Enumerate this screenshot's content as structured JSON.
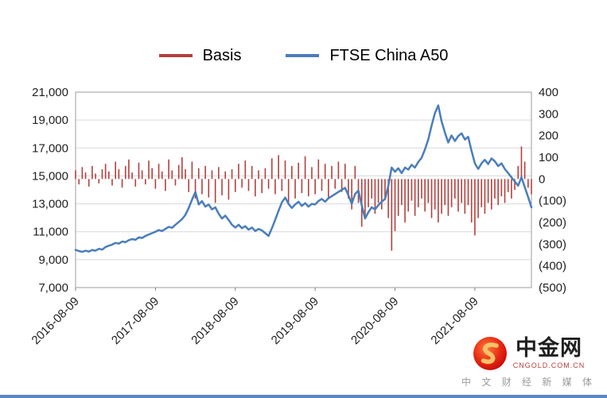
{
  "watermark": {
    "name": "中金网",
    "domain": "CNGOLD.COM.CN",
    "tagline": "中 文 财 经 新 媒 体",
    "logo_red": "#d71718",
    "logo_gold": "#f6c269"
  },
  "chart_data": {
    "type": "line",
    "title": "",
    "grid": true,
    "legend_position": "top",
    "left_axis": {
      "min": 7000,
      "max": 21000,
      "step": 2000,
      "labels": [
        "21,000",
        "19,000",
        "17,000",
        "15,000",
        "13,000",
        "11,000",
        "9,000",
        "7,000"
      ]
    },
    "right_axis": {
      "min": -500,
      "max": 400,
      "step": 100,
      "labels": [
        "400",
        "300",
        "200",
        "100",
        "0",
        "(100)",
        "(200)",
        "(300)",
        "(400)",
        "(500)"
      ]
    },
    "x_ticks": {
      "labels": [
        "2016-08-09",
        "2017-08-09",
        "2018-08-09",
        "2019-08-09",
        "2020-08-09",
        "2021-08-09"
      ],
      "indices": [
        0,
        24,
        48,
        72,
        96,
        120
      ]
    },
    "series": [
      {
        "name": "Basis",
        "type": "bar",
        "axis": "right",
        "color": "#b2413e",
        "values": [
          40,
          -25,
          55,
          30,
          -35,
          60,
          25,
          -20,
          45,
          70,
          35,
          -30,
          80,
          45,
          -40,
          60,
          90,
          30,
          -35,
          75,
          40,
          -25,
          85,
          50,
          -45,
          70,
          35,
          -55,
          90,
          40,
          -30,
          65,
          100,
          45,
          -60,
          80,
          -90,
          50,
          -70,
          60,
          -85,
          40,
          -110,
          55,
          -75,
          35,
          -95,
          45,
          -60,
          70,
          -40,
          85,
          -55,
          60,
          -80,
          40,
          -65,
          50,
          -45,
          95,
          -70,
          110,
          -55,
          85,
          -120,
          60,
          -90,
          75,
          -65,
          105,
          -80,
          55,
          -70,
          90,
          -55,
          70,
          -85,
          60,
          -45,
          80,
          -60,
          70,
          -90,
          -140,
          60,
          -110,
          -220,
          -180,
          -130,
          -90,
          -160,
          -110,
          -140,
          -95,
          -180,
          -330,
          -240,
          -170,
          -120,
          -200,
          -150,
          -100,
          -170,
          -130,
          -90,
          -150,
          -110,
          -180,
          -140,
          -200,
          -160,
          -120,
          -170,
          -130,
          -90,
          -150,
          -110,
          -160,
          -120,
          -200,
          -260,
          -180,
          -130,
          -160,
          -110,
          -140,
          -90,
          -120,
          -80,
          -110,
          -60,
          -90,
          -50,
          60,
          150,
          80,
          -40,
          -70
        ]
      },
      {
        "name": "FTSE China A50",
        "type": "line",
        "axis": "left",
        "color": "#4a7ebb",
        "values": [
          9700,
          9620,
          9560,
          9640,
          9580,
          9700,
          9640,
          9780,
          9720,
          9900,
          10000,
          10080,
          10200,
          10150,
          10300,
          10250,
          10400,
          10480,
          10420,
          10600,
          10550,
          10700,
          10800,
          10900,
          11000,
          11120,
          11050,
          11200,
          11350,
          11280,
          11500,
          11700,
          11900,
          12200,
          12700,
          13300,
          13850,
          12950,
          13200,
          12800,
          12950,
          12600,
          12750,
          12300,
          11950,
          12150,
          11850,
          11500,
          11300,
          11500,
          11250,
          11400,
          11150,
          11300,
          11050,
          11200,
          11100,
          10900,
          10700,
          11250,
          11850,
          12500,
          13100,
          13450,
          13000,
          12700,
          12950,
          13150,
          12850,
          13050,
          12800,
          13000,
          12950,
          13200,
          13350,
          13150,
          13400,
          13550,
          13700,
          13850,
          14000,
          14150,
          13600,
          13000,
          13700,
          13950,
          12900,
          11950,
          12400,
          12750,
          12600,
          12900,
          13150,
          13350,
          14300,
          15600,
          15300,
          15550,
          15200,
          15600,
          15450,
          15800,
          15600,
          16000,
          16300,
          16900,
          17600,
          18600,
          19500,
          20050,
          18900,
          18100,
          17400,
          17900,
          17500,
          17850,
          18050,
          17600,
          17800,
          16800,
          15900,
          15500,
          15900,
          16150,
          15850,
          16250,
          16050,
          15700,
          15900,
          15500,
          15200,
          14900,
          14600,
          14300,
          14900,
          14200,
          13500,
          12750
        ]
      }
    ]
  }
}
